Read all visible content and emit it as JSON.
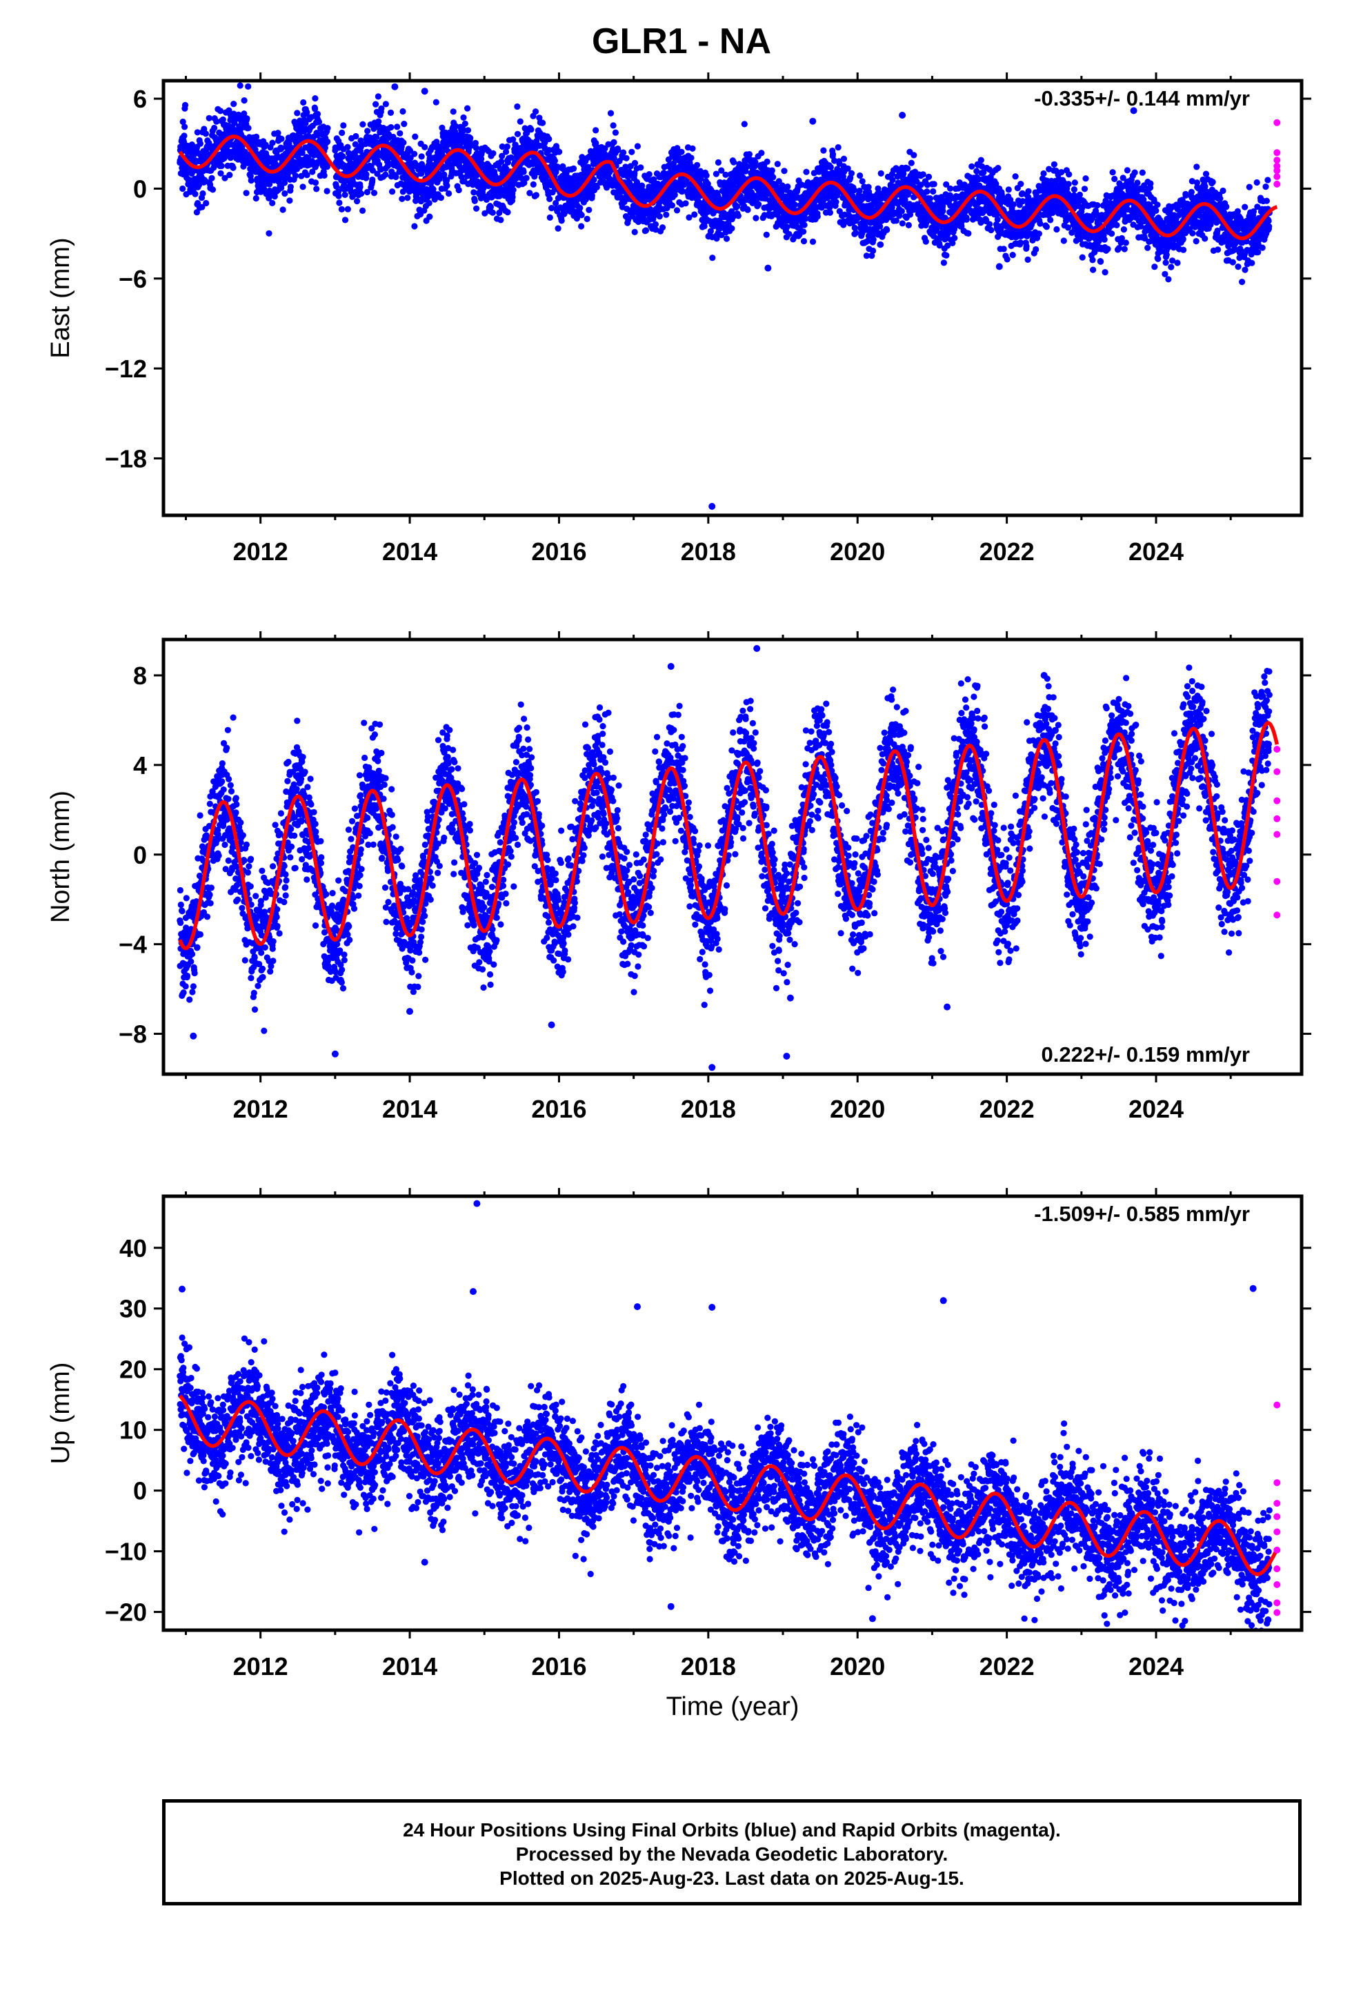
{
  "title": "GLR1 - NA",
  "colors": {
    "final_orbit_points": "#0000ff",
    "rapid_orbit_points": "#ff00ff",
    "model_fit": "#ff0000",
    "frame": "#000000",
    "background": "#ffffff"
  },
  "x_axis": {
    "label": "Time (year)",
    "range": [
      2010.7,
      2025.95
    ],
    "ticks": [
      "2012",
      "2014",
      "2016",
      "2018",
      "2020",
      "2022",
      "2024"
    ],
    "tick_values": [
      2012,
      2014,
      2016,
      2018,
      2020,
      2022,
      2024
    ],
    "data_start": 2010.92,
    "last_final": 2025.52,
    "last_data": 2025.62
  },
  "footer": {
    "line1": "24 Hour Positions Using Final Orbits (blue) and Rapid Orbits (magenta).",
    "line2": "Processed by the Nevada Geodetic Laboratory.",
    "line3": "Plotted on 2025-Aug-23. Last data on 2025-Aug-15."
  },
  "chart_data": [
    {
      "type": "scatter",
      "component": "east",
      "ylabel": "East (mm)",
      "ylim": [
        -21.8,
        7.2
      ],
      "yticks": [
        6,
        0,
        -6,
        -12,
        -18
      ],
      "yticks_text": [
        "6",
        "0",
        "−6",
        "−12",
        "−18"
      ],
      "rate_text": "-0.335+/- 0.144 mm/yr",
      "rate_placement": "top-right",
      "model": {
        "offset_mm": 2.6,
        "trend_mm_per_yr": -0.335,
        "fit_knots": [
          [
            2010.9,
            2.6
          ],
          [
            2012.9,
            2.0
          ],
          [
            2014.9,
            1.4
          ],
          [
            2015.7,
            1.3
          ],
          [
            2016.0,
            0.6
          ],
          [
            2016.7,
            0.7
          ],
          [
            2016.8,
            0.0
          ],
          [
            2018.0,
            -0.2
          ],
          [
            2020.0,
            -0.8
          ],
          [
            2022.0,
            -1.4
          ],
          [
            2024.0,
            -2.0
          ],
          [
            2025.6,
            -2.3
          ]
        ],
        "annual_amp_mm": 1.1,
        "peak_phase_yr": 0.65,
        "final_scatter_mm": 1.2,
        "final_scatter_mm_after_2016": 1.0
      },
      "outliers": [
        [
          2018.05,
          -21.2
        ],
        [
          2018.8,
          -5.3
        ],
        [
          2021.9,
          -5.2
        ],
        [
          2023.7,
          5.2
        ],
        [
          2013.8,
          6.8
        ],
        [
          2014.2,
          6.5
        ],
        [
          2019.4,
          4.5
        ],
        [
          2020.6,
          4.9
        ]
      ],
      "rapid_points": [
        [
          2025.62,
          4.4
        ],
        [
          2025.62,
          2.4
        ],
        [
          2025.62,
          1.9
        ],
        [
          2025.62,
          1.5
        ],
        [
          2025.62,
          1.2
        ],
        [
          2025.62,
          0.8
        ],
        [
          2025.62,
          0.3
        ]
      ]
    },
    {
      "type": "scatter",
      "component": "north",
      "ylabel": "North (mm)",
      "ylim": [
        -9.8,
        9.6
      ],
      "yticks": [
        8,
        4,
        0,
        -4,
        -8
      ],
      "yticks_text": [
        "8",
        "4",
        "0",
        "−4",
        "−8"
      ],
      "rate_text": "0.222+/- 0.159 mm/yr",
      "rate_placement": "bottom-right",
      "model": {
        "offset_mm": -1.0,
        "trend_mm_per_yr": 0.222,
        "annual_amp_mm": 3.2,
        "annual_amp_growth_mm_per_yr": 0.03,
        "peak_phase_yr": 0.5,
        "final_scatter_mm": 1.3
      },
      "outliers": [
        [
          2011.1,
          -8.1
        ],
        [
          2013.0,
          -8.9
        ],
        [
          2015.9,
          -7.6
        ],
        [
          2018.05,
          -9.5
        ],
        [
          2019.05,
          -9.0
        ],
        [
          2018.65,
          9.2
        ],
        [
          2017.5,
          8.4
        ],
        [
          2022.5,
          8.0
        ],
        [
          2019.1,
          -6.4
        ],
        [
          2021.2,
          -6.8
        ],
        [
          2014.0,
          -7.0
        ]
      ],
      "rapid_points": [
        [
          2025.62,
          4.7
        ],
        [
          2025.62,
          3.7
        ],
        [
          2025.62,
          2.4
        ],
        [
          2025.62,
          1.6
        ],
        [
          2025.62,
          0.9
        ],
        [
          2025.62,
          -1.2
        ],
        [
          2025.62,
          -2.7
        ]
      ]
    },
    {
      "type": "scatter",
      "component": "up",
      "ylabel": "Up (mm)",
      "ylim": [
        -23,
        48.5
      ],
      "yticks": [
        40,
        30,
        20,
        10,
        0,
        -10,
        -20
      ],
      "yticks_text": [
        "40",
        "30",
        "20",
        "10",
        "0",
        "−10",
        "−20"
      ],
      "rate_text": "-1.509+/- 0.585 mm/yr",
      "rate_placement": "top-right",
      "model": {
        "offset_mm": 12.0,
        "trend_mm_per_yr": -1.509,
        "annual_amp_mm": 4.0,
        "peak_phase_yr": 0.85,
        "final_scatter_mm": 4.2
      },
      "outliers": [
        [
          2014.9,
          47.3
        ],
        [
          2010.95,
          33.2
        ],
        [
          2014.85,
          32.8
        ],
        [
          2017.05,
          30.3
        ],
        [
          2021.15,
          31.3
        ],
        [
          2025.3,
          33.3
        ],
        [
          2018.05,
          30.2
        ],
        [
          2020.2,
          -21.1
        ],
        [
          2025.5,
          -21.3
        ],
        [
          2017.5,
          -19.1
        ],
        [
          2014.2,
          -11.8
        ]
      ],
      "rapid_points": [
        [
          2025.62,
          14.1
        ],
        [
          2025.62,
          1.3
        ],
        [
          2025.62,
          -2.1
        ],
        [
          2025.62,
          -4.3
        ],
        [
          2025.62,
          -6.8
        ],
        [
          2025.62,
          -9.8
        ],
        [
          2025.62,
          -12.9
        ],
        [
          2025.62,
          -15.5
        ],
        [
          2025.62,
          -18.5
        ],
        [
          2025.62,
          -20.1
        ]
      ]
    }
  ]
}
